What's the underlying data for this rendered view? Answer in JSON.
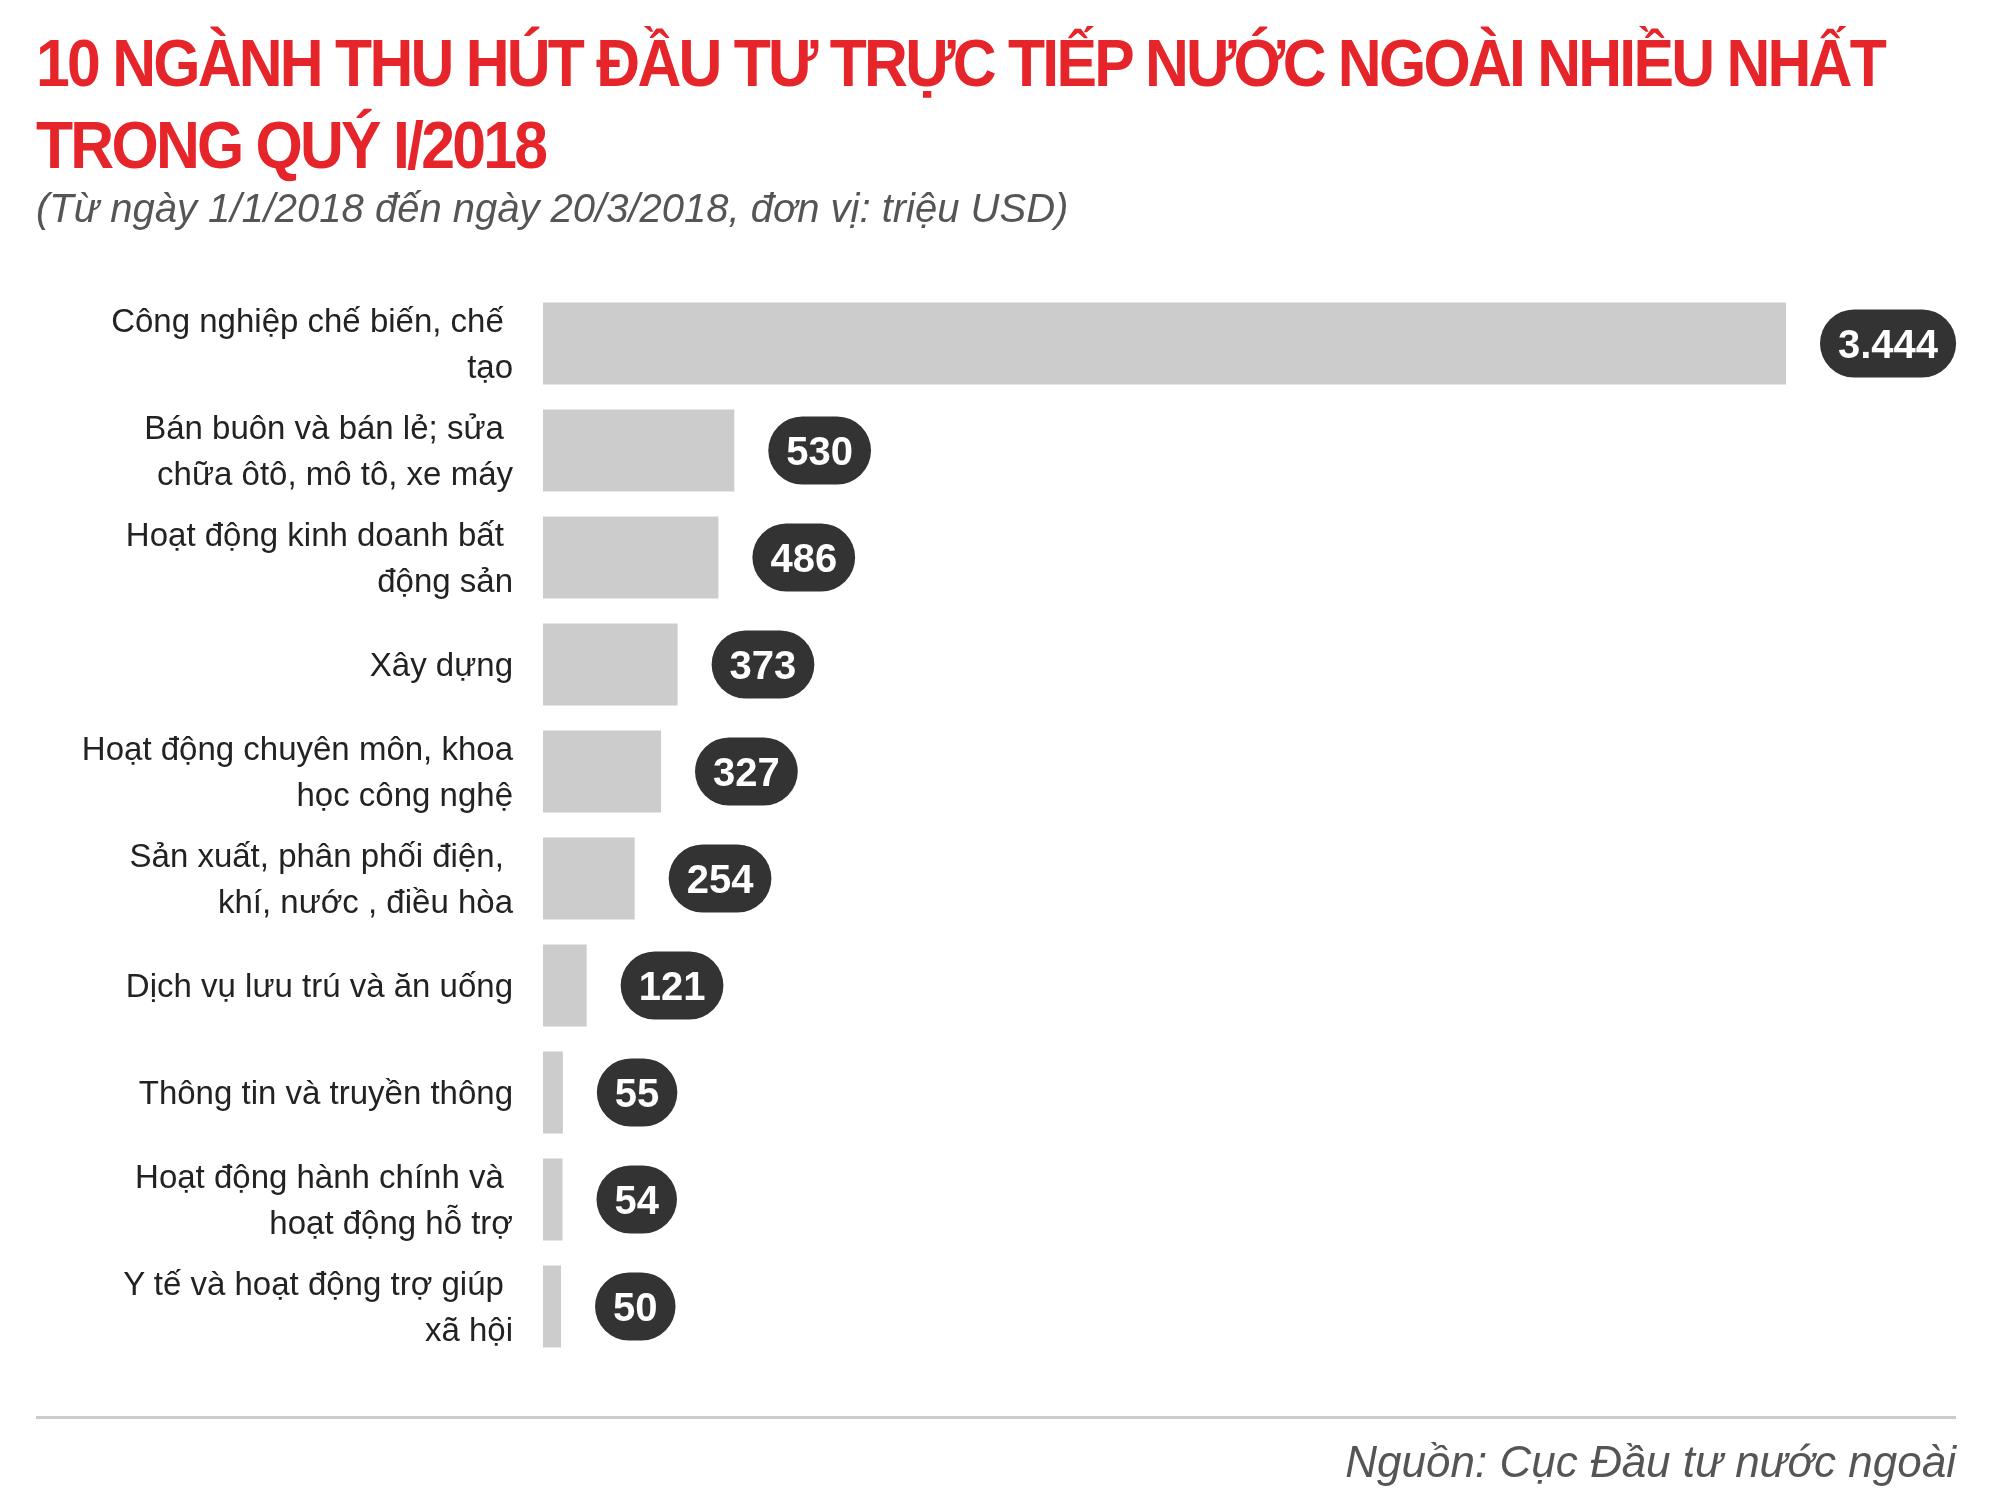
{
  "chart_data": {
    "type": "bar",
    "orientation": "horizontal",
    "title": "10 NGÀNH THU HÚT ĐẦU TƯ TRỰC TIẾP NƯỚC NGOÀI NHIỀU NHẤT TRONG QUÝ I/2018",
    "subtitle": "(Từ ngày 1/1/2018 đến ngày 20/3/2018, đơn vị: triệu USD)",
    "categories": [
      "Công nghiệp chế biến, chế tạo",
      "Bán buôn và bán lẻ; sửa chữa ôtô, mô tô, xe máy",
      "Hoạt động kinh doanh bất động sản",
      "Xây dựng",
      "Hoạt động chuyên môn, khoa học công nghệ",
      "Sản xuất, phân phối điện, khí, nước , điều hòa",
      "Dịch vụ lưu trú và ăn uống",
      "Thông tin và truyền thông",
      "Hoạt động hành chính và hoạt động hỗ trợ",
      "Y tế và hoạt động trợ giúp xã hội"
    ],
    "values": [
      3444,
      530,
      486,
      373,
      327,
      254,
      121,
      55,
      54,
      50
    ],
    "value_labels": [
      "3.444",
      "530",
      "486",
      "373",
      "327",
      "254",
      "121",
      "55",
      "54",
      "50"
    ],
    "color": "#cccccc",
    "annotations": [
      "Nguồn: Cục Đầu tư nước ngoài"
    ]
  }
}
